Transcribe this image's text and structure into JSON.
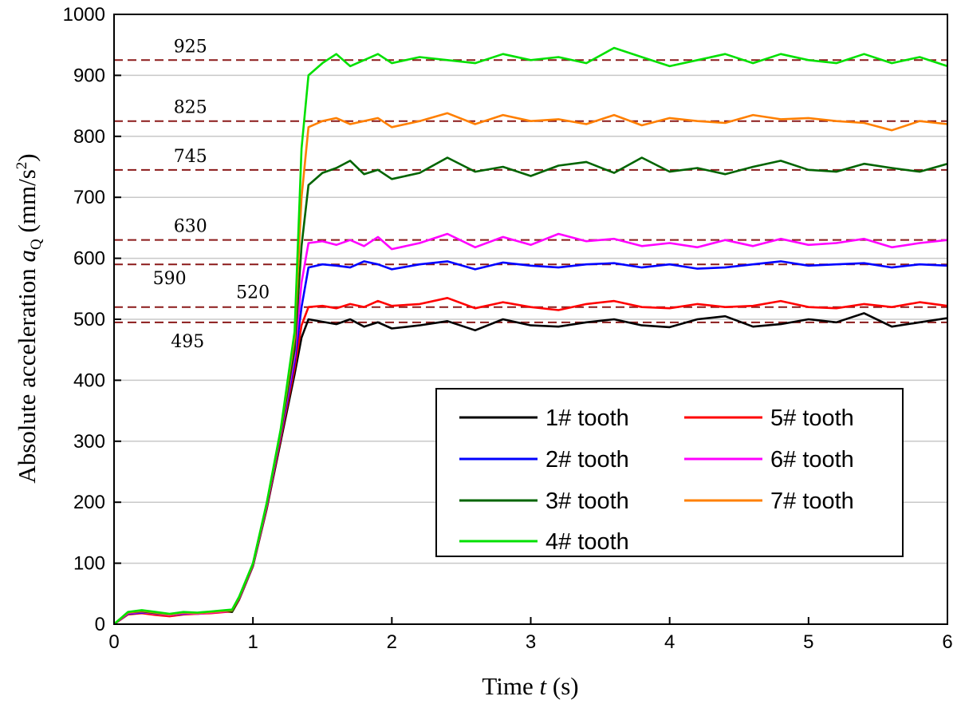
{
  "chart_data": {
    "type": "line",
    "xlabel": {
      "prefix": "Time ",
      "var": "t",
      "suffix": " (s)"
    },
    "ylabel": {
      "prefix": "Absolute acceleration ",
      "var": "a",
      "sub": "Q",
      "units_open": " (mm/s",
      "units_sup": "2",
      "units_close": ")"
    },
    "xlim": [
      0,
      6
    ],
    "ylim": [
      0,
      1000
    ],
    "xticks": [
      0,
      1,
      2,
      3,
      4,
      5,
      6
    ],
    "yticks": [
      0,
      100,
      200,
      300,
      400,
      500,
      600,
      700,
      800,
      900,
      1000
    ],
    "grid": "horizontal",
    "legend_position": "lower-right",
    "reference_lines": [
      {
        "value": 925,
        "label": "925"
      },
      {
        "value": 825,
        "label": "825"
      },
      {
        "value": 745,
        "label": "745"
      },
      {
        "value": 630,
        "label": "630"
      },
      {
        "value": 590,
        "label": "590"
      },
      {
        "value": 520,
        "label": "520"
      },
      {
        "value": 495,
        "label": "495"
      }
    ],
    "reference_line_color": "#8b1a1a",
    "x": [
      0,
      0.1,
      0.2,
      0.3,
      0.4,
      0.5,
      0.6,
      0.7,
      0.8,
      0.85,
      0.9,
      1.0,
      1.1,
      1.2,
      1.3,
      1.35,
      1.4,
      1.5,
      1.6,
      1.7,
      1.8,
      1.9,
      2.0,
      2.2,
      2.4,
      2.6,
      2.8,
      3.0,
      3.2,
      3.4,
      3.6,
      3.8,
      4.0,
      4.2,
      4.4,
      4.6,
      4.8,
      5.0,
      5.2,
      5.4,
      5.6,
      5.8,
      6.0
    ],
    "series": [
      {
        "name": "1# tooth",
        "color": "#000000",
        "values": [
          0,
          18,
          20,
          17,
          14,
          18,
          17,
          19,
          21,
          20,
          40,
          95,
          190,
          300,
          410,
          470,
          500,
          496,
          492,
          500,
          488,
          495,
          485,
          490,
          497,
          482,
          500,
          490,
          488,
          495,
          500,
          490,
          487,
          500,
          505,
          488,
          492,
          500,
          495,
          510,
          488,
          495,
          502
        ]
      },
      {
        "name": "2# tooth",
        "color": "#0000ff",
        "values": [
          0,
          17,
          19,
          18,
          15,
          17,
          18,
          20,
          21,
          22,
          42,
          97,
          195,
          310,
          430,
          520,
          585,
          590,
          588,
          585,
          595,
          590,
          582,
          590,
          595,
          582,
          593,
          588,
          585,
          590,
          592,
          585,
          590,
          583,
          585,
          590,
          595,
          588,
          590,
          592,
          585,
          590,
          588
        ]
      },
      {
        "name": "3# tooth",
        "color": "#006400",
        "values": [
          0,
          19,
          21,
          18,
          16,
          19,
          18,
          20,
          22,
          21,
          43,
          98,
          198,
          315,
          450,
          620,
          720,
          740,
          748,
          760,
          738,
          745,
          730,
          740,
          765,
          742,
          750,
          735,
          752,
          758,
          740,
          765,
          742,
          748,
          738,
          750,
          760,
          745,
          742,
          755,
          748,
          742,
          755
        ]
      },
      {
        "name": "4# tooth",
        "color": "#00e000",
        "values": [
          0,
          20,
          23,
          20,
          17,
          20,
          19,
          21,
          23,
          24,
          45,
          100,
          200,
          320,
          480,
          780,
          900,
          920,
          935,
          915,
          925,
          935,
          920,
          930,
          925,
          920,
          935,
          925,
          930,
          920,
          945,
          930,
          915,
          925,
          935,
          920,
          935,
          925,
          920,
          935,
          920,
          930,
          915
        ]
      },
      {
        "name": "5# tooth",
        "color": "#ff0000",
        "values": [
          0,
          16,
          18,
          15,
          13,
          16,
          17,
          18,
          20,
          21,
          41,
          96,
          192,
          305,
          420,
          490,
          520,
          522,
          518,
          525,
          520,
          530,
          522,
          525,
          535,
          518,
          528,
          520,
          515,
          525,
          530,
          520,
          518,
          525,
          520,
          522,
          530,
          520,
          518,
          525,
          520,
          528,
          522
        ]
      },
      {
        "name": "6# tooth",
        "color": "#ff00ff",
        "values": [
          0,
          18,
          20,
          17,
          15,
          18,
          17,
          19,
          21,
          22,
          42,
          97,
          196,
          312,
          440,
          560,
          625,
          628,
          622,
          630,
          620,
          635,
          615,
          625,
          640,
          618,
          635,
          622,
          640,
          628,
          632,
          620,
          625,
          618,
          630,
          620,
          632,
          622,
          625,
          632,
          618,
          625,
          630
        ]
      },
      {
        "name": "7# tooth",
        "color": "#ff7f00",
        "values": [
          0,
          19,
          22,
          19,
          16,
          19,
          18,
          20,
          22,
          23,
          44,
          99,
          199,
          318,
          470,
          700,
          815,
          825,
          830,
          820,
          825,
          830,
          815,
          825,
          838,
          820,
          835,
          825,
          828,
          820,
          835,
          818,
          830,
          825,
          822,
          835,
          828,
          830,
          825,
          822,
          810,
          825,
          820
        ]
      }
    ]
  }
}
